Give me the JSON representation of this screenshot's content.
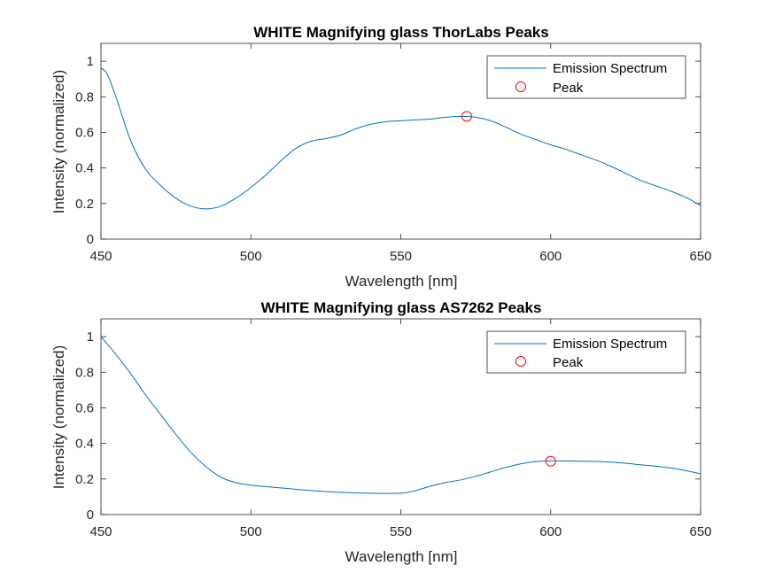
{
  "figure": {
    "background": "#ffffff"
  },
  "chart_data": [
    {
      "type": "line",
      "title": "WHITE Magnifying glass ThorLabs Peaks",
      "xlabel": "Wavelength [nm]",
      "ylabel": "Intensity (normalized)",
      "xlim": [
        450,
        650
      ],
      "ylim": [
        0,
        1.1
      ],
      "xticks": [
        "450",
        "500",
        "550",
        "600",
        "650"
      ],
      "yticks": [
        "0",
        "0.2",
        "0.4",
        "0.6",
        "0.8",
        "1"
      ],
      "grid": false,
      "legend": {
        "placement": "top-right",
        "entries": [
          "Emission Spectrum",
          "Peak"
        ]
      },
      "series": [
        {
          "name": "Emission Spectrum",
          "color": "#0072BD",
          "x": [
            450,
            452,
            455,
            460,
            465,
            470,
            475,
            480,
            485,
            490,
            495,
            500,
            505,
            510,
            515,
            520,
            525,
            530,
            535,
            540,
            545,
            550,
            555,
            560,
            565,
            570,
            575,
            580,
            585,
            590,
            595,
            600,
            605,
            610,
            615,
            620,
            625,
            630,
            635,
            640,
            645,
            650
          ],
          "y": [
            0.96,
            0.93,
            0.8,
            0.55,
            0.39,
            0.3,
            0.23,
            0.185,
            0.17,
            0.185,
            0.23,
            0.29,
            0.36,
            0.44,
            0.51,
            0.55,
            0.565,
            0.585,
            0.62,
            0.645,
            0.66,
            0.665,
            0.67,
            0.675,
            0.685,
            0.69,
            0.685,
            0.665,
            0.63,
            0.59,
            0.56,
            0.53,
            0.505,
            0.475,
            0.445,
            0.41,
            0.37,
            0.33,
            0.3,
            0.27,
            0.235,
            0.19
          ]
        },
        {
          "name": "Peak",
          "color": "#FF0000",
          "marker": "circle",
          "x": [
            572
          ],
          "y": [
            0.69
          ]
        }
      ]
    },
    {
      "type": "line",
      "title": "WHITE Magnifying glass AS7262 Peaks",
      "xlabel": "Wavelength [nm]",
      "ylabel": "Intensity (normalized)",
      "xlim": [
        450,
        650
      ],
      "ylim": [
        0,
        1.1
      ],
      "xticks": [
        "450",
        "500",
        "550",
        "600",
        "650"
      ],
      "yticks": [
        "0",
        "0.2",
        "0.4",
        "0.6",
        "0.8",
        "1"
      ],
      "grid": false,
      "legend": {
        "placement": "top-right",
        "entries": [
          "Emission Spectrum",
          "Peak"
        ]
      },
      "series": [
        {
          "name": "Emission Spectrum",
          "color": "#0072BD",
          "x": [
            450,
            455,
            460,
            465,
            470,
            475,
            480,
            485,
            490,
            495,
            500,
            510,
            520,
            530,
            540,
            550,
            555,
            560,
            565,
            570,
            575,
            580,
            585,
            590,
            595,
            600,
            610,
            620,
            630,
            640,
            650
          ],
          "y": [
            1.0,
            0.9,
            0.79,
            0.67,
            0.56,
            0.45,
            0.35,
            0.27,
            0.21,
            0.18,
            0.165,
            0.15,
            0.135,
            0.125,
            0.12,
            0.12,
            0.135,
            0.16,
            0.18,
            0.195,
            0.215,
            0.24,
            0.265,
            0.285,
            0.298,
            0.302,
            0.3,
            0.295,
            0.28,
            0.262,
            0.23
          ]
        },
        {
          "name": "Peak",
          "color": "#FF0000",
          "marker": "circle",
          "x": [
            600
          ],
          "y": [
            0.3
          ]
        }
      ]
    }
  ]
}
